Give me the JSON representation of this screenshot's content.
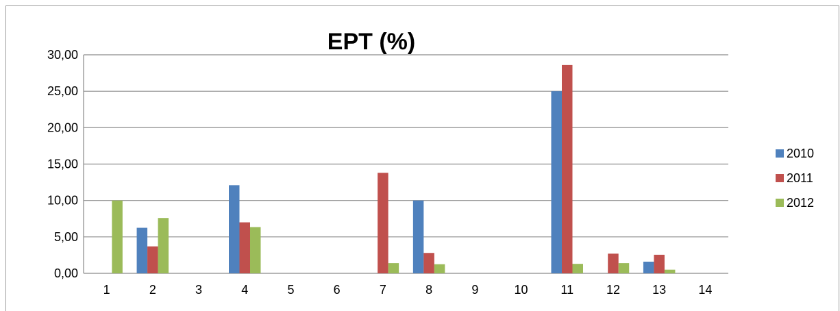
{
  "chart_data": {
    "type": "bar",
    "title": "EPT (%)",
    "xlabel": "",
    "ylabel": "",
    "categories": [
      "1",
      "2",
      "3",
      "4",
      "5",
      "6",
      "7",
      "8",
      "9",
      "10",
      "11",
      "12",
      "13",
      "14"
    ],
    "series": [
      {
        "name": "2010",
        "color": "#4F81BD",
        "values": [
          0,
          6.25,
          0,
          12.1,
          0,
          0,
          0,
          10.0,
          0,
          0,
          25.0,
          0,
          1.6,
          0
        ]
      },
      {
        "name": "2011",
        "color": "#C0504D",
        "values": [
          0,
          3.7,
          0,
          7.0,
          0,
          0,
          13.8,
          2.8,
          0,
          0,
          28.6,
          2.7,
          2.55,
          0
        ]
      },
      {
        "name": "2012",
        "color": "#9BBB59",
        "values": [
          10.0,
          7.6,
          0,
          6.35,
          0,
          0,
          1.4,
          1.25,
          0,
          0,
          1.3,
          1.4,
          0.5,
          0
        ]
      }
    ],
    "ylim": [
      0,
      30
    ],
    "yticks": [
      "0,00",
      "5,00",
      "10,00",
      "15,00",
      "20,00",
      "25,00",
      "30,00"
    ],
    "grid": true,
    "legend": "right"
  }
}
